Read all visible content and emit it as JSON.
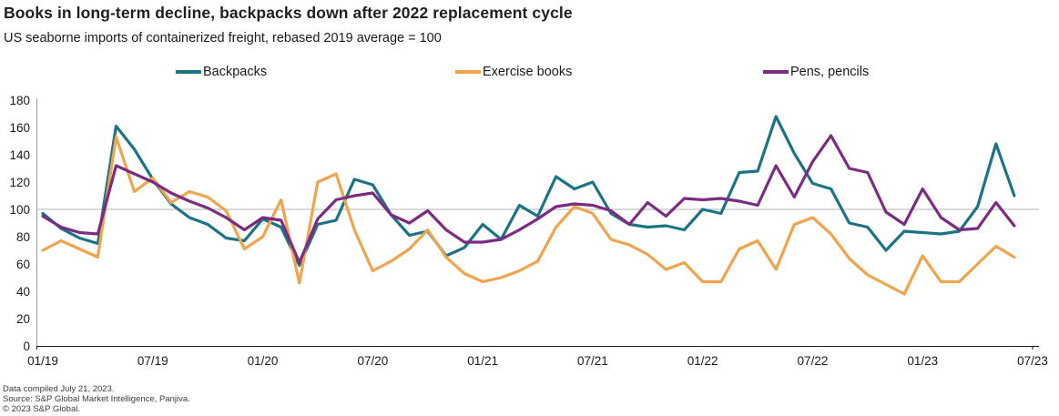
{
  "chart_data": {
    "type": "line",
    "title": "Books in long-term decline, backpacks down after 2022 replacement cycle",
    "subtitle": "US seaborne imports of containerized freight, rebased 2019 average = 100",
    "x": [
      "01/19",
      "02/19",
      "03/19",
      "04/19",
      "05/19",
      "06/19",
      "07/19",
      "08/19",
      "09/19",
      "10/19",
      "11/19",
      "12/19",
      "01/20",
      "02/20",
      "03/20",
      "04/20",
      "05/20",
      "06/20",
      "07/20",
      "08/20",
      "09/20",
      "10/20",
      "11/20",
      "12/20",
      "01/21",
      "02/21",
      "03/21",
      "04/21",
      "05/21",
      "06/21",
      "07/21",
      "08/21",
      "09/21",
      "10/21",
      "11/21",
      "12/21",
      "01/22",
      "02/22",
      "03/22",
      "04/22",
      "05/22",
      "06/22",
      "07/22",
      "08/22",
      "09/22",
      "10/22",
      "11/22",
      "12/22",
      "01/23",
      "02/23",
      "03/23",
      "04/23",
      "05/23",
      "06/23"
    ],
    "series": [
      {
        "name": "Backpacks",
        "color": "#1A7485",
        "values": [
          97,
          86,
          79,
          75,
          161,
          144,
          122,
          104,
          94,
          89,
          79,
          77,
          93,
          87,
          59,
          89,
          92,
          122,
          118,
          96,
          81,
          84,
          66,
          72,
          89,
          78,
          103,
          95,
          124,
          115,
          120,
          97,
          89,
          87,
          88,
          85,
          100,
          97,
          127,
          128,
          168,
          141,
          119,
          115,
          90,
          87,
          70,
          84,
          83,
          82,
          84,
          102,
          148,
          110
        ]
      },
      {
        "name": "Exercise books",
        "color": "#EFA44D",
        "values": [
          70,
          77,
          71,
          65,
          153,
          113,
          123,
          105,
          113,
          109,
          99,
          71,
          80,
          107,
          46,
          120,
          126,
          85,
          55,
          62,
          71,
          85,
          65,
          53,
          47,
          50,
          55,
          62,
          87,
          102,
          97,
          78,
          74,
          67,
          56,
          61,
          47,
          47,
          71,
          77,
          56,
          89,
          94,
          82,
          64,
          52,
          45,
          38,
          66,
          47,
          47,
          60,
          73,
          65
        ]
      },
      {
        "name": "Pens, pencils",
        "color": "#7C2B82",
        "values": [
          95,
          87,
          83,
          82,
          132,
          126,
          120,
          112,
          106,
          101,
          94,
          85,
          94,
          92,
          61,
          93,
          107,
          110,
          112,
          96,
          90,
          99,
          85,
          76,
          76,
          78,
          85,
          93,
          102,
          104,
          103,
          99,
          89,
          105,
          95,
          108,
          107,
          108,
          106,
          103,
          132,
          109,
          135,
          154,
          130,
          127,
          98,
          89,
          115,
          94,
          85,
          86,
          105,
          88
        ]
      }
    ],
    "ylim": [
      0,
      180
    ],
    "yticks": [
      0,
      20,
      40,
      60,
      80,
      100,
      120,
      140,
      160,
      180
    ],
    "x_tick_labels": [
      "01/19",
      "07/19",
      "01/20",
      "07/20",
      "01/21",
      "07/21",
      "01/22",
      "07/22",
      "01/23",
      "07/23"
    ],
    "x_tick_month_indices": [
      0,
      6,
      12,
      18,
      24,
      30,
      36,
      42,
      48,
      54
    ],
    "reference_line_y": 100,
    "legend_position": "top",
    "grid": "off"
  },
  "footer": {
    "lines": [
      "Data compiled July 21, 2023.",
      "Source: S&P Global Market Intelligence, Panjiva.",
      "© 2023 S&P Global."
    ]
  },
  "colors": {
    "axis_line": "#1a1a1a",
    "y_axis_line": "#9b9b9b",
    "reference_line": "#b3b3b3",
    "tick_text": "#1a1a1a",
    "footer_text": "#3c3c3c",
    "background": "#ffffff"
  }
}
